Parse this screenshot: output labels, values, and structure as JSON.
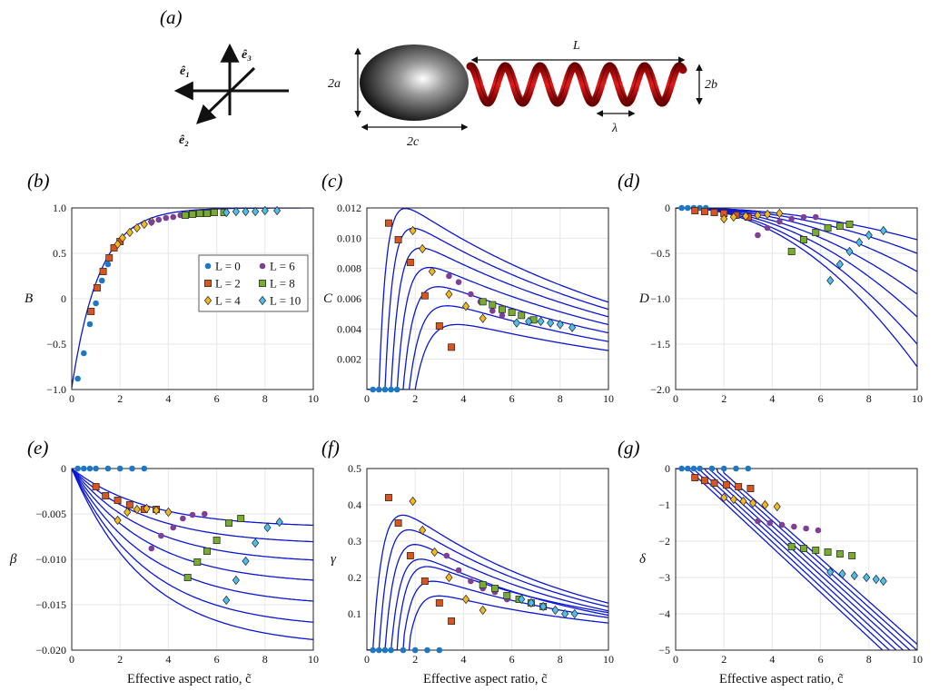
{
  "panels": {
    "a": "(a)",
    "b": "(b)",
    "c": "(c)",
    "d": "(d)",
    "e": "(e)",
    "f": "(f)",
    "g": "(g)"
  },
  "schematic": {
    "axes_labels": [
      "ê₁",
      "ê₂",
      "ê₃"
    ],
    "dims": {
      "a": "2a",
      "c": "2c",
      "L": "L",
      "b": "2b",
      "lambda": "λ"
    }
  },
  "xlabel": "Effective aspect ratio, c̃",
  "colors": {
    "curve": "#0a17d8",
    "L0": "#1f77c4",
    "L2": "#d9541e",
    "L4": "#f2b81d",
    "L6": "#7e3f95",
    "L8": "#77ac30",
    "L10": "#4dbeee"
  },
  "legend": [
    "L = 0",
    "L = 2",
    "L = 4",
    "L = 6",
    "L = 8",
    "L = 10"
  ],
  "chart_data": [
    {
      "panel": "b",
      "type": "line",
      "ylabel": "B",
      "xlim": [
        0,
        10
      ],
      "ylim": [
        -1.0,
        1.0
      ],
      "xticks": [
        0,
        2,
        4,
        6,
        8,
        10
      ],
      "yticks": [
        -1.0,
        -0.5,
        0,
        0.5,
        1.0
      ],
      "yticklabels": [
        "−1.0",
        "−0.5",
        "0",
        "0.5",
        "1.0"
      ],
      "legend_position": "center-right",
      "series": [
        {
          "name": "L = 0",
          "marker": "circle",
          "x": [
            0.25,
            0.5,
            0.75,
            1.0,
            1.25,
            1.5
          ],
          "y": [
            -0.88,
            -0.6,
            -0.28,
            -0.05,
            0.2,
            0.38
          ]
        },
        {
          "name": "L = 2",
          "marker": "square",
          "x": [
            0.8,
            1.05,
            1.3,
            1.55,
            1.75,
            2.0
          ],
          "y": [
            -0.14,
            0.12,
            0.3,
            0.45,
            0.56,
            0.63
          ]
        },
        {
          "name": "L = 4",
          "marker": "diamond",
          "x": [
            1.9,
            2.1,
            2.4,
            2.7,
            3.0,
            3.3
          ],
          "y": [
            0.6,
            0.67,
            0.73,
            0.78,
            0.82,
            0.85
          ]
        },
        {
          "name": "L = 6",
          "marker": "circle",
          "x": [
            3.3,
            3.6,
            3.9,
            4.2,
            4.5,
            4.8
          ],
          "y": [
            0.84,
            0.87,
            0.89,
            0.9,
            0.92,
            0.93
          ]
        },
        {
          "name": "L = 8",
          "marker": "square",
          "x": [
            4.7,
            5.0,
            5.3,
            5.6,
            5.9,
            6.3
          ],
          "y": [
            0.92,
            0.93,
            0.94,
            0.94,
            0.95,
            0.95
          ]
        },
        {
          "name": "L = 10",
          "marker": "diamond",
          "x": [
            6.4,
            6.8,
            7.2,
            7.6,
            8.0,
            8.5
          ],
          "y": [
            0.95,
            0.96,
            0.96,
            0.96,
            0.97,
            0.97
          ]
        }
      ]
    },
    {
      "panel": "c",
      "type": "line",
      "ylabel": "C",
      "xlim": [
        0,
        10
      ],
      "ylim": [
        0,
        0.012
      ],
      "xticks": [
        0,
        2,
        4,
        6,
        8,
        10
      ],
      "yticks": [
        0.002,
        0.004,
        0.006,
        0.008,
        0.01,
        0.012
      ],
      "yticklabels": [
        "0.002",
        "0.004",
        "0.006",
        "0.008",
        "0.010",
        "0.012"
      ],
      "series": [
        {
          "name": "L = 0",
          "marker": "circle",
          "x": [
            0.25,
            0.5,
            0.75,
            1.0,
            1.25
          ],
          "y": [
            0,
            0,
            0,
            0,
            0
          ]
        },
        {
          "name": "L = 2",
          "marker": "square",
          "x": [
            0.9,
            1.3,
            1.8,
            2.4,
            3.0,
            3.5
          ],
          "y": [
            0.011,
            0.0099,
            0.0084,
            0.0062,
            0.0042,
            0.0028
          ]
        },
        {
          "name": "L = 4",
          "marker": "diamond",
          "x": [
            1.9,
            2.3,
            2.7,
            3.4,
            4.1,
            4.8
          ],
          "y": [
            0.0105,
            0.0093,
            0.0078,
            0.0063,
            0.0055,
            0.0047
          ]
        },
        {
          "name": "L = 6",
          "marker": "circle",
          "x": [
            3.4,
            3.8,
            4.3,
            4.7,
            5.2,
            5.6
          ],
          "y": [
            0.0075,
            0.0071,
            0.0063,
            0.0058,
            0.0052,
            0.0049
          ]
        },
        {
          "name": "L = 8",
          "marker": "square",
          "x": [
            4.8,
            5.2,
            5.6,
            6.0,
            6.4,
            6.9
          ],
          "y": [
            0.0058,
            0.0056,
            0.0053,
            0.0051,
            0.0049,
            0.0046
          ]
        },
        {
          "name": "L = 10",
          "marker": "diamond",
          "x": [
            6.2,
            6.7,
            7.2,
            7.6,
            8.0,
            8.5
          ],
          "y": [
            0.0044,
            0.0045,
            0.0045,
            0.0044,
            0.0043,
            0.0041
          ]
        }
      ]
    },
    {
      "panel": "d",
      "type": "line",
      "ylabel": "D",
      "xlim": [
        0,
        10
      ],
      "ylim": [
        -2.0,
        0
      ],
      "xticks": [
        0,
        2,
        4,
        6,
        8,
        10
      ],
      "yticks": [
        -2.0,
        -1.5,
        -1.0,
        -0.5,
        0
      ],
      "yticklabels": [
        "−2.0",
        "−1.5",
        "−1.0",
        "−0.5",
        "0"
      ],
      "series": [
        {
          "name": "L = 0",
          "marker": "circle",
          "x": [
            0.25,
            0.5,
            0.75,
            1.0,
            1.25
          ],
          "y": [
            0,
            0,
            0,
            0,
            0
          ]
        },
        {
          "name": "L = 2",
          "marker": "square",
          "x": [
            0.8,
            1.2,
            1.6,
            2.0,
            2.5,
            3.0
          ],
          "y": [
            -0.03,
            -0.04,
            -0.05,
            -0.06,
            -0.08,
            -0.1
          ]
        },
        {
          "name": "L = 4",
          "marker": "diamond",
          "x": [
            2.0,
            2.4,
            2.9,
            3.4,
            3.8,
            4.3
          ],
          "y": [
            -0.12,
            -0.1,
            -0.09,
            -0.08,
            -0.07,
            -0.06
          ]
        },
        {
          "name": "L = 6",
          "marker": "circle",
          "x": [
            3.4,
            3.8,
            4.3,
            4.8,
            5.3,
            5.8
          ],
          "y": [
            -0.3,
            -0.22,
            -0.15,
            -0.12,
            -0.1,
            -0.1
          ]
        },
        {
          "name": "L = 8",
          "marker": "square",
          "x": [
            4.8,
            5.3,
            5.8,
            6.3,
            6.8,
            7.2
          ],
          "y": [
            -0.48,
            -0.35,
            -0.27,
            -0.22,
            -0.2,
            -0.18
          ]
        },
        {
          "name": "L = 10",
          "marker": "diamond",
          "x": [
            6.4,
            6.8,
            7.2,
            7.6,
            8.0,
            8.6
          ],
          "y": [
            -0.8,
            -0.62,
            -0.48,
            -0.38,
            -0.3,
            -0.25
          ]
        }
      ]
    },
    {
      "panel": "e",
      "type": "line",
      "ylabel": "β",
      "xlim": [
        0,
        10
      ],
      "ylim": [
        -0.02,
        0
      ],
      "xticks": [
        0,
        2,
        4,
        6,
        8,
        10
      ],
      "yticks": [
        -0.02,
        -0.015,
        -0.01,
        -0.005,
        0
      ],
      "yticklabels": [
        "−0.020",
        "−0.015",
        "−0.010",
        "−0.005",
        "0"
      ],
      "series": [
        {
          "name": "L = 0",
          "marker": "circle",
          "x": [
            0.25,
            0.5,
            0.75,
            1.0,
            1.5,
            2.0,
            2.5,
            3.0
          ],
          "y": [
            0,
            0,
            0,
            0,
            0,
            0,
            0,
            0
          ]
        },
        {
          "name": "L = 2",
          "marker": "square",
          "x": [
            1.0,
            1.4,
            1.9,
            2.4,
            3.0,
            3.5
          ],
          "y": [
            -0.002,
            -0.003,
            -0.0035,
            -0.004,
            -0.0045,
            -0.0045
          ]
        },
        {
          "name": "L = 4",
          "marker": "diamond",
          "x": [
            1.9,
            2.3,
            2.7,
            3.1,
            3.5,
            4.0
          ],
          "y": [
            -0.0057,
            -0.0048,
            -0.0045,
            -0.0044,
            -0.0046,
            -0.0048
          ]
        },
        {
          "name": "L = 6",
          "marker": "circle",
          "x": [
            3.3,
            3.7,
            4.2,
            4.6,
            5.0,
            5.5
          ],
          "y": [
            -0.0088,
            -0.0074,
            -0.0065,
            -0.0055,
            -0.0051,
            -0.005
          ]
        },
        {
          "name": "L = 8",
          "marker": "square",
          "x": [
            4.8,
            5.2,
            5.6,
            6.0,
            6.5,
            7.0
          ],
          "y": [
            -0.012,
            -0.0103,
            -0.0091,
            -0.0079,
            -0.006,
            -0.0055
          ]
        },
        {
          "name": "L = 10",
          "marker": "diamond",
          "x": [
            6.4,
            6.8,
            7.2,
            7.6,
            8.1,
            8.6
          ],
          "y": [
            -0.0145,
            -0.0123,
            -0.0102,
            -0.0082,
            -0.0065,
            -0.0059
          ]
        }
      ]
    },
    {
      "panel": "f",
      "type": "line",
      "ylabel": "γ",
      "xlim": [
        0,
        10
      ],
      "ylim": [
        0,
        0.5
      ],
      "xticks": [
        0,
        2,
        4,
        6,
        8,
        10
      ],
      "yticks": [
        0.1,
        0.2,
        0.3,
        0.4,
        0.5
      ],
      "yticklabels": [
        "0.1",
        "0.2",
        "0.3",
        "0.4",
        "0.5"
      ],
      "series": [
        {
          "name": "L = 0",
          "marker": "circle",
          "x": [
            0.25,
            0.5,
            0.75,
            1.0,
            1.5,
            2.0,
            2.5,
            3.0
          ],
          "y": [
            0,
            0,
            0,
            0,
            0,
            0,
            0,
            0
          ]
        },
        {
          "name": "L = 2",
          "marker": "square",
          "x": [
            0.9,
            1.3,
            1.8,
            2.4,
            3.0,
            3.5
          ],
          "y": [
            0.42,
            0.35,
            0.26,
            0.19,
            0.13,
            0.08
          ]
        },
        {
          "name": "L = 4",
          "marker": "diamond",
          "x": [
            1.9,
            2.3,
            2.8,
            3.4,
            4.1,
            4.8
          ],
          "y": [
            0.41,
            0.33,
            0.27,
            0.2,
            0.14,
            0.11
          ]
        },
        {
          "name": "L = 6",
          "marker": "circle",
          "x": [
            3.3,
            3.8,
            4.3,
            4.8,
            5.3,
            5.8
          ],
          "y": [
            0.26,
            0.22,
            0.19,
            0.17,
            0.16,
            0.14
          ]
        },
        {
          "name": "L = 8",
          "marker": "square",
          "x": [
            4.8,
            5.3,
            5.8,
            6.3,
            6.8,
            7.3
          ],
          "y": [
            0.18,
            0.17,
            0.15,
            0.14,
            0.13,
            0.12
          ]
        },
        {
          "name": "L = 10",
          "marker": "diamond",
          "x": [
            6.4,
            6.8,
            7.3,
            7.8,
            8.2,
            8.6
          ],
          "y": [
            0.14,
            0.13,
            0.12,
            0.11,
            0.1,
            0.1
          ]
        }
      ]
    },
    {
      "panel": "g",
      "type": "line",
      "ylabel": "δ",
      "xlim": [
        0,
        10
      ],
      "ylim": [
        -5,
        0
      ],
      "xticks": [
        0,
        2,
        4,
        6,
        8,
        10
      ],
      "yticks": [
        -5,
        -4,
        -3,
        -2,
        -1,
        0
      ],
      "yticklabels": [
        "−5",
        "−4",
        "−3",
        "−2",
        "−1",
        "0"
      ],
      "series": [
        {
          "name": "L = 0",
          "marker": "circle",
          "x": [
            0.25,
            0.5,
            0.75,
            1.0,
            1.5,
            2.0,
            2.5,
            3.0
          ],
          "y": [
            0,
            0,
            0,
            0,
            0,
            0,
            0,
            0
          ]
        },
        {
          "name": "L = 2",
          "marker": "square",
          "x": [
            0.8,
            1.2,
            1.6,
            2.1,
            2.6,
            3.1
          ],
          "y": [
            -0.25,
            -0.33,
            -0.4,
            -0.45,
            -0.5,
            -0.55
          ]
        },
        {
          "name": "L = 4",
          "marker": "diamond",
          "x": [
            2.0,
            2.4,
            2.8,
            3.2,
            3.7,
            4.2
          ],
          "y": [
            -0.8,
            -0.85,
            -0.9,
            -0.95,
            -1.0,
            -1.05
          ]
        },
        {
          "name": "L = 6",
          "marker": "circle",
          "x": [
            3.4,
            3.9,
            4.4,
            4.9,
            5.4,
            5.9
          ],
          "y": [
            -1.45,
            -1.5,
            -1.55,
            -1.6,
            -1.65,
            -1.7
          ]
        },
        {
          "name": "L = 8",
          "marker": "square",
          "x": [
            4.8,
            5.3,
            5.8,
            6.3,
            6.8,
            7.3
          ],
          "y": [
            -2.15,
            -2.2,
            -2.25,
            -2.3,
            -2.35,
            -2.4
          ]
        },
        {
          "name": "L = 10",
          "marker": "diamond",
          "x": [
            6.4,
            6.9,
            7.4,
            7.9,
            8.3,
            8.6
          ],
          "y": [
            -2.85,
            -2.9,
            -2.95,
            -3.0,
            -3.05,
            -3.1
          ]
        }
      ]
    }
  ]
}
